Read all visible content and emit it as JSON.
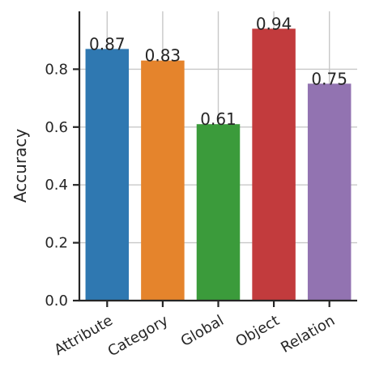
{
  "chart_data": {
    "type": "bar",
    "categories": [
      "Attribute",
      "Category",
      "Global",
      "Object",
      "Relation"
    ],
    "values": [
      0.87,
      0.83,
      0.61,
      0.94,
      0.75
    ],
    "value_labels": [
      "0.87",
      "0.83",
      "0.61",
      "0.94",
      "0.75"
    ],
    "colors": [
      "#2f78b1",
      "#e5842c",
      "#3b9b3b",
      "#c23b3d",
      "#9273b1"
    ],
    "ylabel": "Accuracy",
    "xlabel": "",
    "title": "",
    "ylim": [
      0,
      1.0
    ],
    "yticks": [
      0.0,
      0.2,
      0.4,
      0.6,
      0.8
    ],
    "ytick_labels": [
      "0.0",
      "0.2",
      "0.4",
      "0.6",
      "0.8"
    ],
    "grid": true
  }
}
